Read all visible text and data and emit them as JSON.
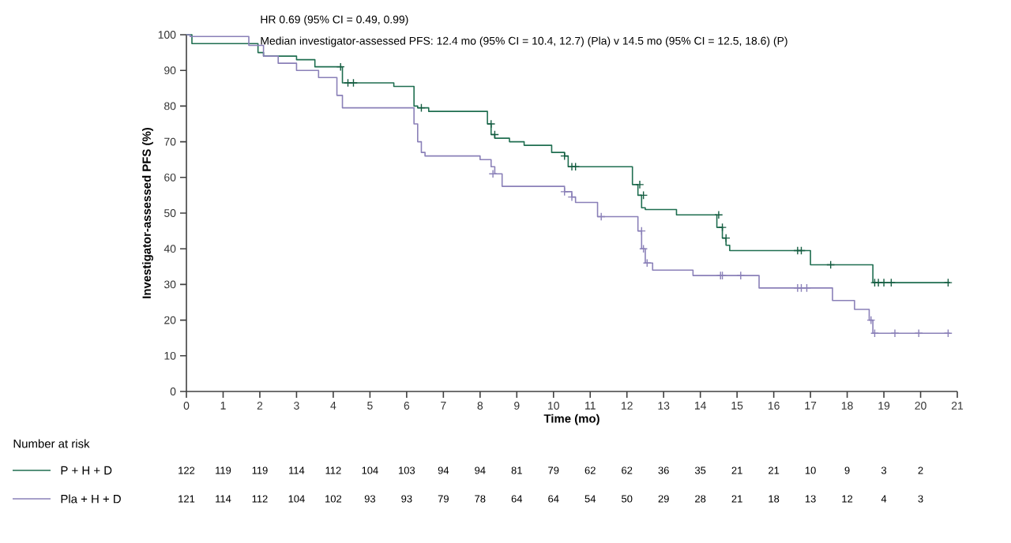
{
  "chart_data": {
    "type": "step",
    "xlabel": "Time (mo)",
    "ylabel": "Investigator-assessed PFS (%)",
    "xlim": [
      0,
      21
    ],
    "xticks": [
      0,
      1,
      2,
      3,
      4,
      5,
      6,
      7,
      8,
      9,
      10,
      11,
      12,
      13,
      14,
      15,
      16,
      17,
      18,
      19,
      20,
      21
    ],
    "ylim": [
      0,
      100
    ],
    "yticks": [
      0,
      10,
      20,
      30,
      40,
      50,
      60,
      70,
      80,
      90,
      100
    ],
    "legend": "bottom left",
    "series": [
      {
        "name": "P + H + D",
        "color": "#1f6e50",
        "x": [
          0,
          0.15,
          1.95,
          2.1,
          3.0,
          3.5,
          4.25,
          5.65,
          6.2,
          6.3,
          6.6,
          8.2,
          8.3,
          8.4,
          8.8,
          9.2,
          9.95,
          10.3,
          10.4,
          12.15,
          12.3,
          12.4,
          12.5,
          13.35,
          14.45,
          14.6,
          14.7,
          14.8,
          17.0,
          18.7,
          20.8
        ],
        "values": [
          100,
          97.5,
          95,
          94,
          93,
          91,
          86.5,
          85.5,
          80,
          79.5,
          78.5,
          75,
          72,
          71,
          70,
          69,
          67,
          66,
          63,
          58,
          55,
          51.5,
          51,
          49.5,
          46,
          43,
          41,
          39.5,
          35.5,
          30.5,
          30.5
        ]
      },
      {
        "name": "Pla + H + D",
        "color": "#8a80b8",
        "x": [
          0,
          0.1,
          1.7,
          2.1,
          2.5,
          3.0,
          3.6,
          4.1,
          4.25,
          6.2,
          6.3,
          6.4,
          6.5,
          8.0,
          8.3,
          8.4,
          8.6,
          10.3,
          10.5,
          10.6,
          11.2,
          12.3,
          12.4,
          12.5,
          12.7,
          13.8,
          15.6,
          17.6,
          18.2,
          18.6,
          18.7,
          20.8
        ],
        "values": [
          100,
          99.5,
          97,
          94,
          92,
          90,
          88,
          83,
          79.5,
          75,
          70,
          67,
          66,
          65,
          63,
          61,
          57.5,
          56,
          54.5,
          53,
          49,
          45,
          40,
          36,
          34,
          32.5,
          29,
          25.5,
          23,
          20,
          16.3,
          16.3
        ]
      },
      {
        "color": "#145c40",
        "type": "scatter",
        "marker": "cross",
        "x": [
          4.2,
          4.4,
          4.55,
          6.4,
          8.3,
          8.4,
          10.3,
          10.5,
          10.6,
          12.35,
          12.45,
          14.5,
          14.6,
          14.7,
          16.65,
          16.75,
          17.55,
          18.75,
          18.85,
          19.0,
          19.2,
          20.75
        ],
        "values": [
          91,
          86.5,
          86.5,
          79.5,
          75,
          72,
          66,
          63,
          63,
          58,
          55,
          49.5,
          46,
          43,
          39.5,
          39.5,
          35.5,
          30.5,
          30.5,
          30.5,
          30.5,
          30.5
        ]
      },
      {
        "color": "#8a80b8",
        "type": "scatter",
        "marker": "cross",
        "x": [
          8.35,
          10.3,
          10.5,
          11.3,
          12.4,
          12.45,
          12.55,
          14.55,
          14.6,
          15.1,
          16.65,
          16.75,
          16.9,
          18.65,
          18.75,
          19.3,
          19.95,
          20.75
        ],
        "values": [
          61,
          56,
          54.5,
          49,
          45,
          40,
          36,
          32.5,
          32.5,
          32.5,
          29,
          29,
          29,
          20,
          16.3,
          16.3,
          16.3,
          16.3
        ]
      }
    ],
    "annotations": [
      "HR 0.69 (95% CI = 0.49, 0.99)",
      "Median investigator-assessed PFS: 12.4 mo (95% CI = 10.4, 12.7) (Pla) v 14.5 mo (95% CI = 12.5, 18.6) (P)",
      "Number at risk",
      "122",
      "119",
      "119",
      "114",
      "112",
      "104",
      "103",
      "94",
      "94",
      "81",
      "79",
      "62",
      "62",
      "36",
      "35",
      "21",
      "21",
      "10",
      "9",
      "3",
      "2",
      "121",
      "114",
      "112",
      "104",
      "102",
      "93",
      "93",
      "79",
      "78",
      "64",
      "64",
      "54",
      "50",
      "29",
      "28",
      "21",
      "18",
      "13",
      "12",
      "4",
      "3"
    ]
  }
}
